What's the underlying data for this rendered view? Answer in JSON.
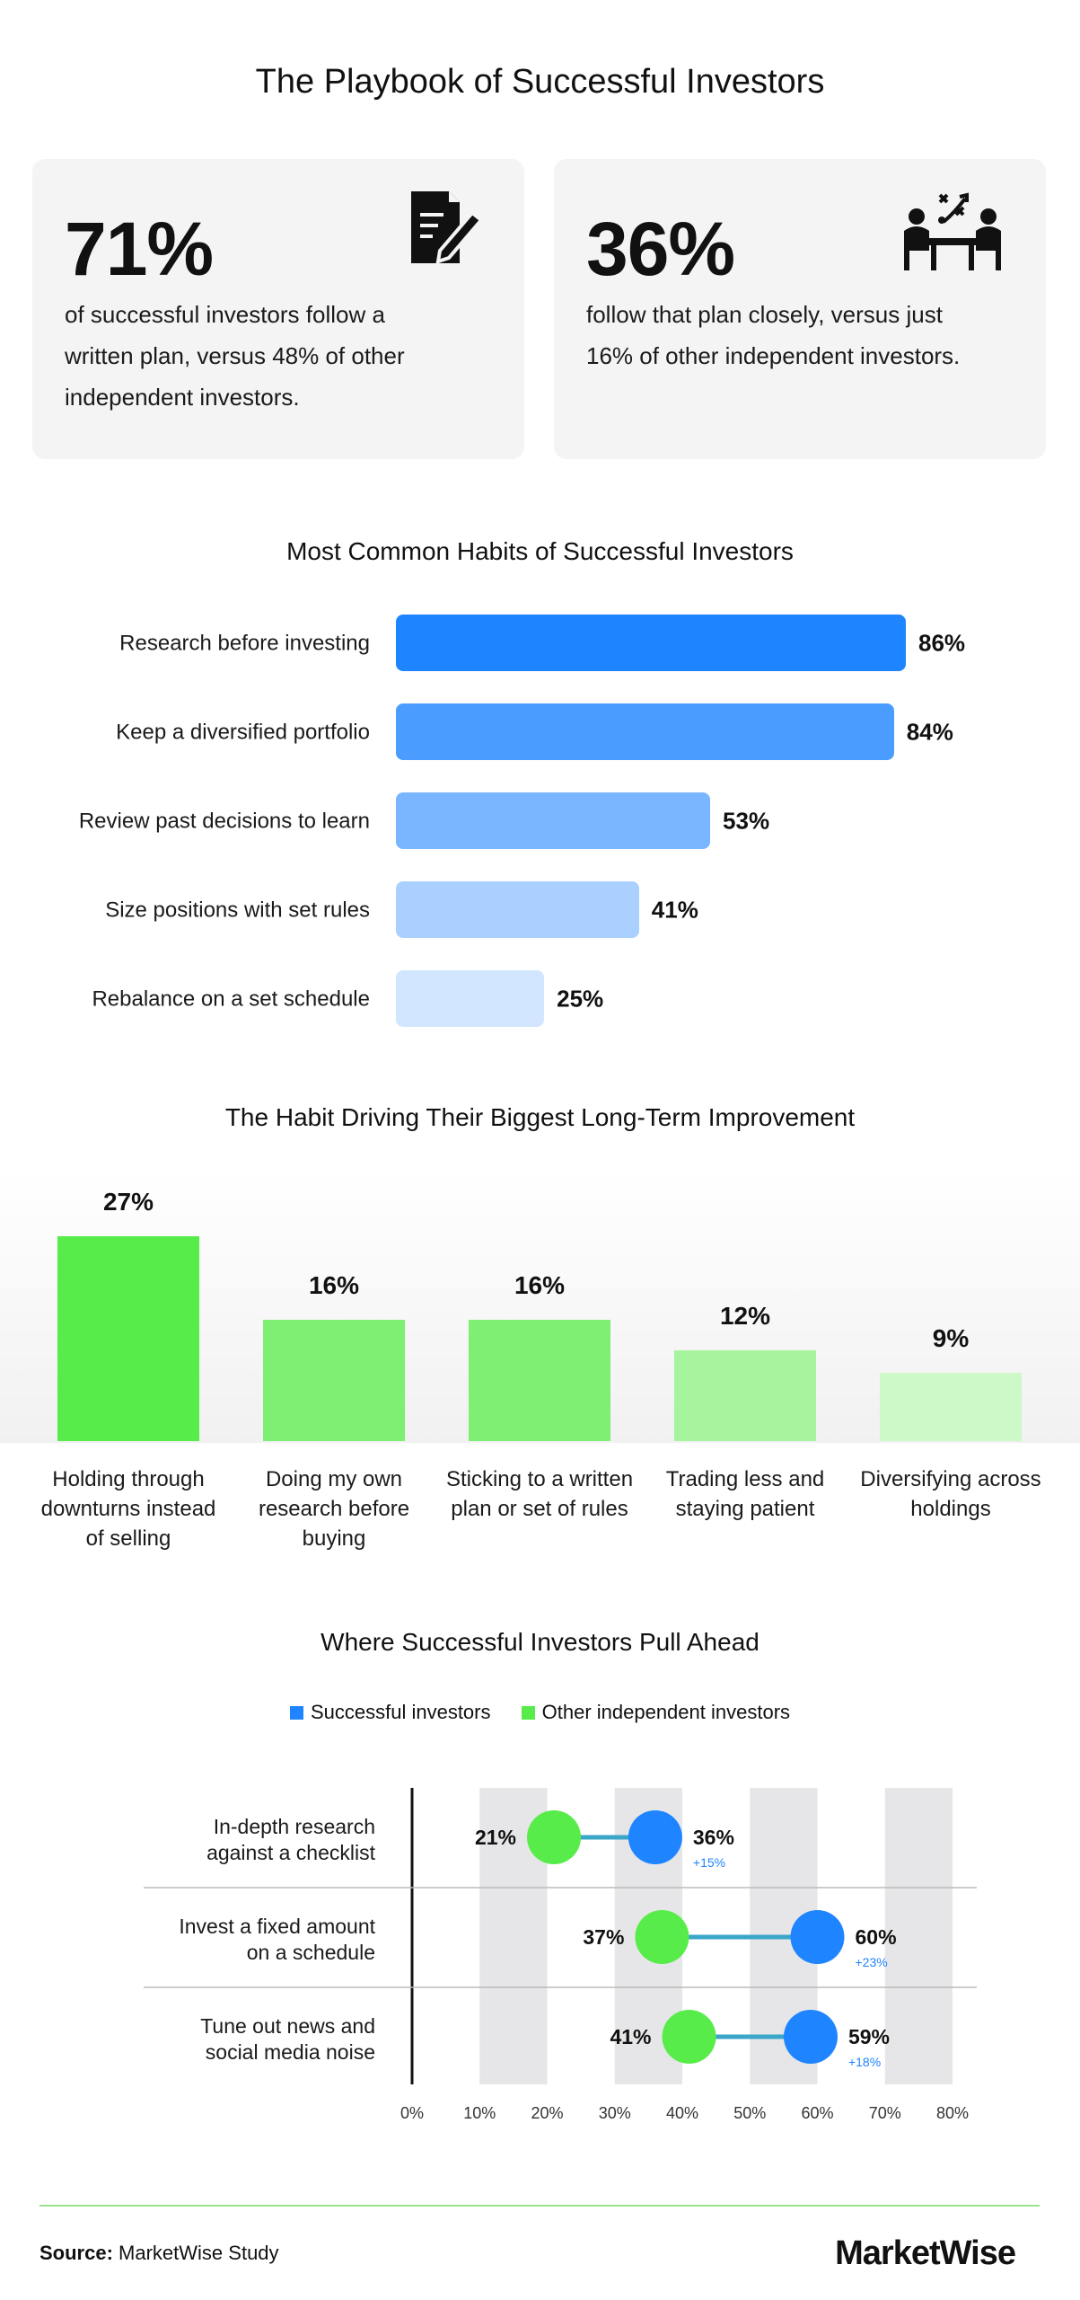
{
  "title": "The Playbook of Successful Investors",
  "stats": [
    {
      "value": "71%",
      "text": "of successful investors follow a written plan, versus 48% of other independent investors.",
      "icon": "written-plan-icon"
    },
    {
      "value": "36%",
      "text": "follow that plan closely, versus just 16% of other independent investors.",
      "icon": "strategy-meeting-icon"
    }
  ],
  "colors": {
    "blue": "#1e84ff",
    "green": "#58ec4a",
    "gray_band": "#e6e6e8"
  },
  "chart_data": [
    {
      "type": "bar",
      "orientation": "horizontal",
      "title": "Most Common Habits of Successful Investors",
      "categories": [
        "Research before investing",
        "Keep a diversified portfolio",
        "Review past decisions to learn",
        "Size positions with set rules",
        "Rebalance on a set schedule"
      ],
      "values": [
        86,
        84,
        53,
        41,
        25
      ],
      "labels": [
        "86%",
        "84%",
        "53%",
        "41%",
        "25%"
      ],
      "colors": [
        "#1e84ff",
        "#4a9dff",
        "#79b6ff",
        "#a9d0ff",
        "#d3e6ff"
      ]
    },
    {
      "type": "bar",
      "title": "The Habit Driving Their Biggest Long-Term Improvement",
      "categories": [
        "Holding through downturns instead of selling",
        "Doing my own research before buying",
        "Sticking to a written plan or set of rules",
        "Trading less and staying patient",
        "Diversifying across holdings"
      ],
      "values": [
        27,
        16,
        16,
        12,
        9
      ],
      "labels": [
        "27%",
        "16%",
        "16%",
        "12%",
        "9%"
      ],
      "colors": [
        "#58ec4a",
        "#7eef72",
        "#7eef72",
        "#a6f49d",
        "#cdf8c7"
      ]
    },
    {
      "type": "scatter",
      "subtype": "dumbbell",
      "title": "Where Successful Investors Pull Ahead",
      "legend_position": "top",
      "xlim": [
        0,
        80
      ],
      "x_ticks": [
        "0%",
        "10%",
        "20%",
        "30%",
        "40%",
        "50%",
        "60%",
        "70%",
        "80%"
      ],
      "series": [
        {
          "name": "Successful investors",
          "color": "#1e84ff"
        },
        {
          "name": "Other independent investors",
          "color": "#58ec4a"
        }
      ],
      "rows": [
        {
          "category": "In-depth research against a checklist",
          "other": 21,
          "successful": 36,
          "other_label": "21%",
          "successful_label": "36%",
          "diff_label": "+15%"
        },
        {
          "category": "Invest a fixed amount on a schedule",
          "other": 37,
          "successful": 60,
          "other_label": "37%",
          "successful_label": "60%",
          "diff_label": "+23%"
        },
        {
          "category": "Tune out news and social media noise",
          "other": 41,
          "successful": 59,
          "other_label": "41%",
          "successful_label": "59%",
          "diff_label": "+18%"
        }
      ]
    }
  ],
  "footer": {
    "source_label": "Source:",
    "source": "MarketWise Study",
    "brand": "MarketWise"
  }
}
